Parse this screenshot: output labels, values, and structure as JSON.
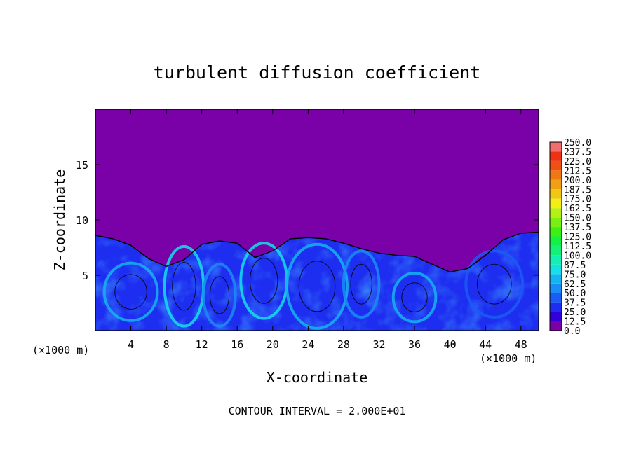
{
  "chart_data": {
    "type": "heatmap",
    "title": "turbulent diffusion coefficient",
    "xlabel": "X-coordinate",
    "ylabel": "Z-coordinate",
    "x_unit_left": "(×1000 m)",
    "x_unit_right": "(×1000 m)",
    "xlim": [
      0,
      50
    ],
    "ylim": [
      0,
      20
    ],
    "x_ticks": [
      4,
      8,
      12,
      16,
      20,
      24,
      28,
      32,
      36,
      40,
      44,
      48
    ],
    "y_ticks": [
      5,
      10,
      15
    ],
    "x_tick_labels": [
      "4",
      "8",
      "12",
      "16",
      "20",
      "24",
      "28",
      "32",
      "36",
      "40",
      "44",
      "48"
    ],
    "y_tick_labels": [
      "5",
      "10",
      "15"
    ],
    "footnote": "CONTOUR INTERVAL = 2.000E+01",
    "colorbar": {
      "levels": [
        "0.0",
        "12.5",
        "25.0",
        "37.5",
        "50.0",
        "62.5",
        "75.0",
        "87.5",
        "100.0",
        "112.5",
        "125.0",
        "137.5",
        "150.0",
        "162.5",
        "175.0",
        "187.5",
        "200.0",
        "212.5",
        "225.0",
        "237.5",
        "250.0"
      ],
      "colors": [
        "#7a00a8",
        "#3200d8",
        "#1e2ef0",
        "#1a5cf5",
        "#1a8cf5",
        "#14b4f0",
        "#14e0e8",
        "#14f0b4",
        "#14f07a",
        "#14f046",
        "#3cf014",
        "#78f014",
        "#b4f014",
        "#f0f014",
        "#f0c814",
        "#f0a014",
        "#f07814",
        "#f05014",
        "#f03214",
        "#f06e6e"
      ]
    },
    "turbulent_layer_top_z": [
      8.6,
      8.3,
      7.7,
      6.5,
      5.8,
      6.4,
      7.8,
      8.1,
      7.9,
      6.6,
      7.2,
      8.3,
      8.4,
      8.3,
      7.9,
      7.4,
      7.0,
      6.8,
      6.7,
      6.0,
      5.3,
      5.6,
      6.8,
      8.2,
      8.8,
      8.9
    ],
    "turbulent_layer_top_x": [
      0,
      2,
      4,
      6,
      8,
      10,
      12,
      14,
      16,
      18,
      20,
      22,
      24,
      26,
      28,
      30,
      32,
      34,
      36,
      38,
      40,
      42,
      44,
      46,
      48,
      50
    ],
    "background_value": "0.0",
    "typical_layer_value": "25.0–50.0",
    "peak_value": "87.5"
  }
}
